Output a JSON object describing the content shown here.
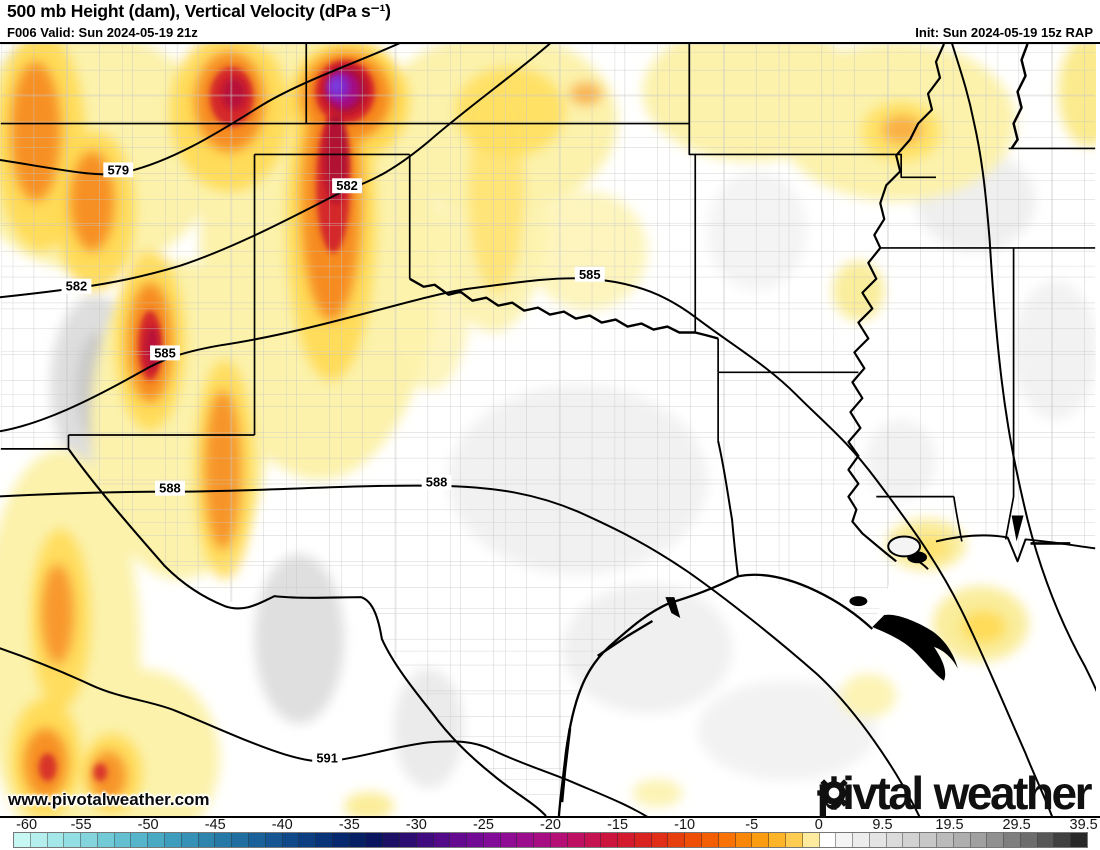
{
  "header": {
    "title": "500 mb Height (dam), Vertical Velocity (dPa s⁻¹)",
    "valid": "F006 Valid: Sun 2024-05-19 21z",
    "init": "Init: Sun 2024-05-19 15z RAP"
  },
  "map": {
    "contours": [
      {
        "label": "579"
      },
      {
        "label": "582"
      },
      {
        "label": "582"
      },
      {
        "label": "585"
      },
      {
        "label": "585"
      },
      {
        "label": "588"
      },
      {
        "label": "588"
      },
      {
        "label": "591"
      }
    ]
  },
  "watermark": "www.pivotalweather.com",
  "logo": {
    "pre": "piv",
    "post": "tal",
    "second": "weather",
    "gear_icon": "gear"
  },
  "colorbar": {
    "ticks": [
      {
        "label": "-60",
        "pos": 0.75
      },
      {
        "label": "-55",
        "pos": 4
      },
      {
        "label": "-50",
        "pos": 8
      },
      {
        "label": "-45",
        "pos": 12
      },
      {
        "label": "-40",
        "pos": 16
      },
      {
        "label": "-35",
        "pos": 20
      },
      {
        "label": "-30",
        "pos": 24
      },
      {
        "label": "-25",
        "pos": 28
      },
      {
        "label": "-20",
        "pos": 32
      },
      {
        "label": "-15",
        "pos": 36
      },
      {
        "label": "-10",
        "pos": 40
      },
      {
        "label": "-5",
        "pos": 44
      },
      {
        "label": "0",
        "pos": 48
      },
      {
        "label": "9.5",
        "pos": 51.8
      },
      {
        "label": "19.5",
        "pos": 55.8
      },
      {
        "label": "29.5",
        "pos": 59.8
      },
      {
        "label": "39.5",
        "pos": 63.8
      }
    ],
    "cells": [
      "#c6f7f2",
      "#b5efed",
      "#a4e7e8",
      "#93dee3",
      "#83d4dd",
      "#73cad7",
      "#64c0d1",
      "#56b5ca",
      "#49a9c3",
      "#3e9dbc",
      "#3591b5",
      "#2d85ae",
      "#2679a7",
      "#206da0",
      "#1a6199",
      "#155591",
      "#104989",
      "#0c3e81",
      "#093378",
      "#06286e",
      "#041f64",
      "#0a155f",
      "#1c1066",
      "#2e0d72",
      "#400b7e",
      "#520a88",
      "#630a90",
      "#730a96",
      "#820b98",
      "#8f0c95",
      "#9c0d8e",
      "#a80e83",
      "#b30f74",
      "#bd1062",
      "#c51250",
      "#cc153e",
      "#d31a2e",
      "#d92321",
      "#e02f16",
      "#e73e0d",
      "#ee4e06",
      "#f35e03",
      "#f87205",
      "#fb8708",
      "#fc9c10",
      "#fdb428",
      "#fecc51",
      "#ffeb9d",
      "#ffffff",
      "#f4f4f4",
      "#ececec",
      "#e4e4e4",
      "#dbdbdb",
      "#d2d2d2",
      "#c7c7c7",
      "#bbbbbb",
      "#aeaeae",
      "#a0a0a0",
      "#909090",
      "#7f7f7f",
      "#6c6c6c",
      "#575757",
      "#404040",
      "#282828"
    ]
  },
  "chart_data": {
    "type": "heatmap",
    "title": "500 mb Height (dam), Vertical Velocity (dPa s⁻¹)",
    "contour_levels_dam": [
      579,
      582,
      585,
      588,
      591
    ],
    "colorbar_ticks": [
      -60,
      -55,
      -50,
      -45,
      -40,
      -35,
      -30,
      -25,
      -20,
      -15,
      -10,
      -5,
      0,
      9.5,
      19.5,
      29.5,
      39.5
    ],
    "colorbar_range": [
      -60,
      45
    ],
    "legend_position": "bottom"
  }
}
